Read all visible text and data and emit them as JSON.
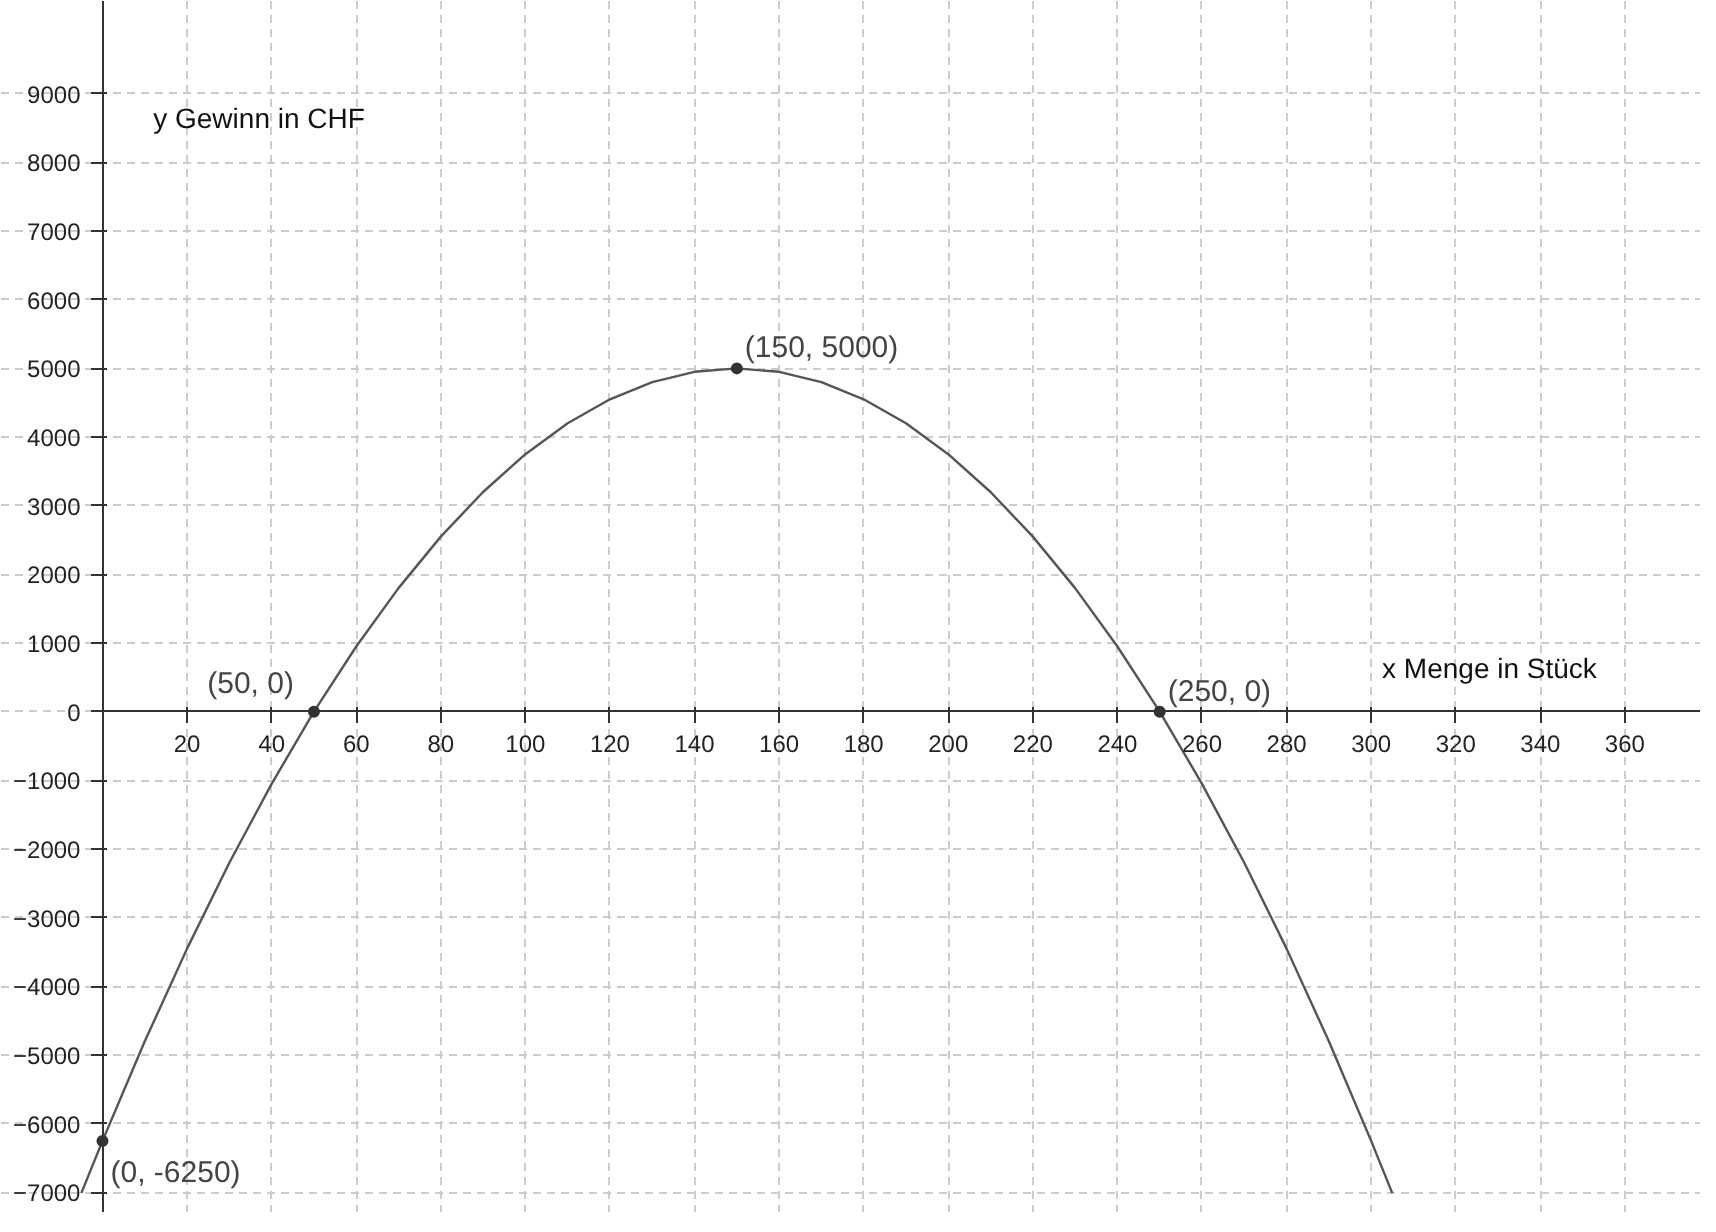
{
  "chart_data": {
    "type": "line",
    "xlabel": "x Menge in Stück",
    "ylabel": "y Gewinn in CHF",
    "xlim": [
      -24,
      378
    ],
    "ylim": [
      -7300,
      10350
    ],
    "xticks": [
      20,
      40,
      60,
      80,
      100,
      120,
      140,
      160,
      180,
      200,
      220,
      240,
      260,
      280,
      300,
      320,
      340,
      360
    ],
    "yticks": [
      -7000,
      -6000,
      -5000,
      -4000,
      -3000,
      -2000,
      -1000,
      0,
      1000,
      2000,
      3000,
      4000,
      5000,
      6000,
      7000,
      8000,
      9000
    ],
    "grid": true,
    "marker": "none",
    "line_style": "solid",
    "series": [
      {
        "color": "#555555",
        "x": [
          -5,
          0,
          10,
          20,
          30,
          40,
          50,
          60,
          70,
          80,
          90,
          100,
          110,
          120,
          130,
          140,
          150,
          160,
          170,
          180,
          190,
          200,
          210,
          220,
          230,
          240,
          250,
          260,
          270,
          280,
          290,
          300,
          305
        ],
        "values": [
          -7010,
          -6250,
          -4800,
          -3450,
          -2200,
          -1050,
          0,
          950,
          1800,
          2550,
          3200,
          3750,
          4200,
          4550,
          4800,
          4950,
          5000,
          4950,
          4800,
          4550,
          4200,
          3750,
          3200,
          2550,
          1800,
          950,
          0,
          -1050,
          -2200,
          -3450,
          -4800,
          -6250,
          -7010
        ]
      },
      {
        "type": "scatter",
        "color": "#333333",
        "marker": "circle",
        "x": [
          0,
          50,
          150,
          250
        ],
        "values": [
          -6250,
          0,
          5000,
          0
        ]
      }
    ],
    "annotations": [
      {
        "text": "(0, -6250)",
        "x": 0,
        "y": -6250
      },
      {
        "text": "(50, 0)",
        "x": 50,
        "y": 0
      },
      {
        "text": "(150, 5000)",
        "x": 150,
        "y": 5000
      },
      {
        "text": "(250, 0)",
        "x": 250,
        "y": 0
      }
    ]
  }
}
